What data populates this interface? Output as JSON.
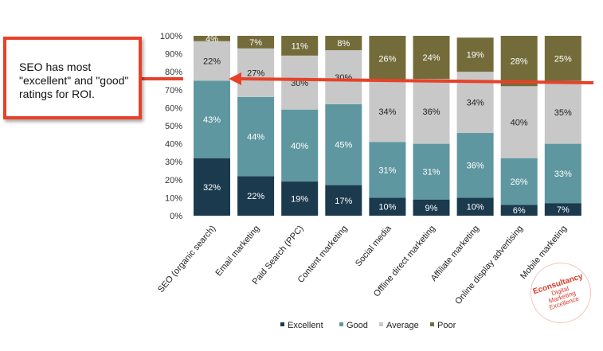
{
  "chart_data": {
    "type": "bar",
    "stacked": true,
    "percent_stacked": true,
    "categories": [
      "SEO (organic search)",
      "Email marketing",
      "Paid Search (PPC)",
      "Content marketing",
      "Social media",
      "Offline direct marketing",
      "Affiliate marketing",
      "Online display advertising",
      "Mobile marketing"
    ],
    "series": [
      {
        "name": "Excellent",
        "color": "#1b3a4e",
        "values": [
          32,
          22,
          19,
          17,
          10,
          9,
          10,
          6,
          7
        ],
        "labels": [
          "32%",
          "22%",
          "19%",
          "17%",
          "10%",
          "9%",
          "10%",
          "6%",
          "7%"
        ]
      },
      {
        "name": "Good",
        "color": "#5f97a1",
        "values": [
          43,
          44,
          40,
          45,
          31,
          31,
          36,
          26,
          33
        ],
        "labels": [
          "43%",
          "44%",
          "40%",
          "45%",
          "31%",
          "31%",
          "36%",
          "26%",
          "33%"
        ]
      },
      {
        "name": "Average",
        "color": "#c8c8c8",
        "values": [
          22,
          27,
          30,
          30,
          34,
          36,
          34,
          40,
          35
        ],
        "labels": [
          "22%",
          "27%",
          "30%",
          "30%",
          "34%",
          "36%",
          "34%",
          "40%",
          "35%"
        ]
      },
      {
        "name": "Poor",
        "color": "#736c3a",
        "values": [
          4,
          7,
          11,
          8,
          26,
          24,
          19,
          28,
          25
        ],
        "labels": [
          "4%",
          "7%",
          "11%",
          "8%",
          "26%",
          "24%",
          "19%",
          "28%",
          "25%"
        ]
      }
    ],
    "y_ticks": [
      "0%",
      "10%",
      "20%",
      "30%",
      "40%",
      "50%",
      "60%",
      "70%",
      "80%",
      "90%",
      "100%"
    ],
    "ylim": [
      0,
      100
    ],
    "grid": false,
    "legend_position": "bottom"
  },
  "callout": {
    "text": "SEO has most \"excellent\" and \"good\" ratings for ROI.",
    "color": "#e8412a"
  },
  "badge": {
    "line1": "Econsultancy",
    "line2": "Digital",
    "line3": "Marketing",
    "line4": "Excellence"
  }
}
